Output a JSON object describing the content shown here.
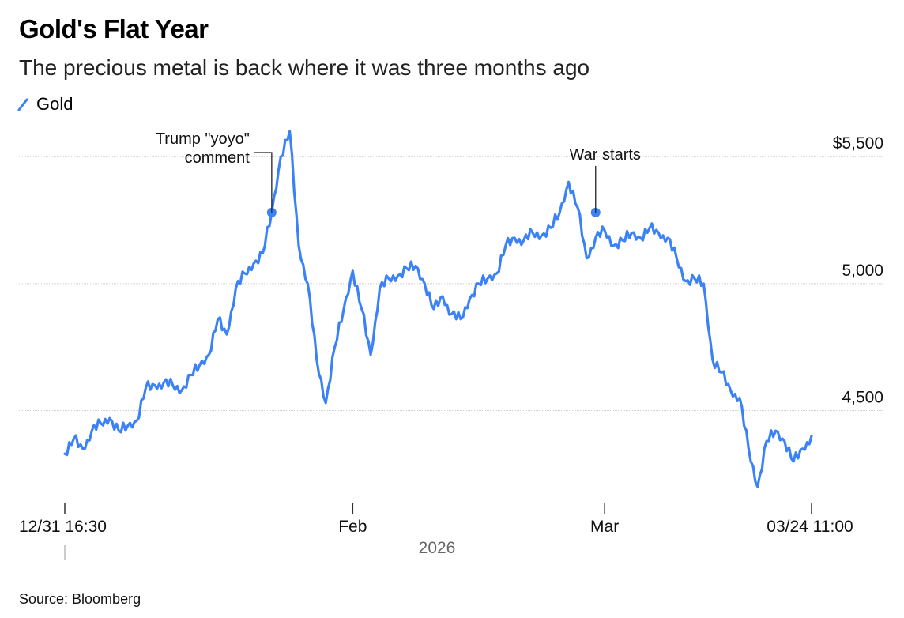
{
  "header": {
    "title": "Gold's Flat Year",
    "subtitle": "The precious metal is back where it was three months ago"
  },
  "legend": {
    "label": "Gold",
    "color": "#3b82f6"
  },
  "footer": {
    "source": "Source: Bloomberg"
  },
  "chart_data": {
    "type": "line",
    "title": "Gold's Flat Year",
    "subtitle": "The precious metal is back where it was three months ago",
    "ylim": [
      4150,
      5650
    ],
    "y_ticks": [
      {
        "value": 5500,
        "label": "$5,500"
      },
      {
        "value": 5000,
        "label": "5,000"
      },
      {
        "value": 4500,
        "label": "4,500"
      }
    ],
    "x_ticks": [
      "12/31 16:30",
      "Feb",
      "Mar",
      "03/24 11:00"
    ],
    "x_period_label": "2026",
    "grid": true,
    "legend_position": "top-left",
    "series": [
      {
        "name": "Gold",
        "color": "#3b82f6",
        "x": [
          "12/31",
          "01/01",
          "01/02",
          "01/03",
          "01/04",
          "01/05",
          "01/06",
          "01/07",
          "01/08",
          "01/09",
          "01/10",
          "01/11",
          "01/12",
          "01/13",
          "01/14",
          "01/15",
          "01/16",
          "01/17",
          "01/18",
          "01/19",
          "01/20",
          "01/21",
          "01/22",
          "01/23",
          "01/24",
          "01/25",
          "01/26",
          "01/27",
          "01/28",
          "01/29",
          "01/30",
          "01/31",
          "02/01",
          "02/02",
          "02/03",
          "02/04",
          "02/05",
          "02/06",
          "02/07",
          "02/08",
          "02/09",
          "02/10",
          "02/11",
          "02/12",
          "02/13",
          "02/14",
          "02/15",
          "02/16",
          "02/17",
          "02/18",
          "02/19",
          "02/20",
          "02/21",
          "02/22",
          "02/23",
          "02/24",
          "02/25",
          "02/26",
          "02/27",
          "02/28",
          "03/01",
          "03/02",
          "03/03",
          "03/04",
          "03/05",
          "03/06",
          "03/07",
          "03/08",
          "03/09",
          "03/10",
          "03/11",
          "03/12",
          "03/13",
          "03/14",
          "03/15",
          "03/16",
          "03/17",
          "03/18",
          "03/19",
          "03/20",
          "03/21",
          "03/22",
          "03/23",
          "03/24"
        ],
        "y": [
          4330,
          4390,
          4350,
          4420,
          4450,
          4470,
          4420,
          4440,
          4460,
          4590,
          4600,
          4610,
          4600,
          4580,
          4640,
          4680,
          4720,
          4860,
          4800,
          4980,
          5040,
          5080,
          5120,
          5280,
          5500,
          5600,
          5150,
          5000,
          4700,
          4530,
          4750,
          4900,
          5050,
          4900,
          4720,
          4980,
          5020,
          5030,
          5060,
          5070,
          5000,
          4900,
          4950,
          4880,
          4860,
          4940,
          5000,
          5020,
          5040,
          5150,
          5180,
          5170,
          5200,
          5190,
          5220,
          5280,
          5400,
          5300,
          5100,
          5180,
          5210,
          5150,
          5170,
          5200,
          5180,
          5220,
          5200,
          5180,
          5100,
          5010,
          5020,
          5000,
          4700,
          4650,
          4580,
          4550,
          4350,
          4200,
          4380,
          4420,
          4380,
          4300,
          4350,
          4400
        ]
      }
    ],
    "annotations": [
      {
        "label_lines": [
          "Trump \"yoyo\"",
          "comment"
        ],
        "x": "01/23",
        "y": 5280
      },
      {
        "label_lines": [
          "War starts"
        ],
        "x": "02/28",
        "y": 5280
      }
    ]
  }
}
